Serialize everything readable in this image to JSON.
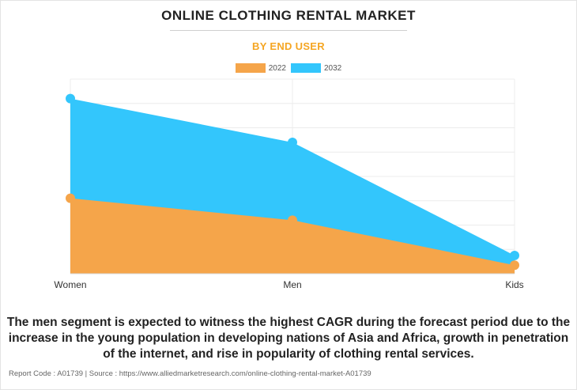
{
  "header": {
    "title": "ONLINE CLOTHING RENTAL MARKET",
    "subtitle": "BY END USER"
  },
  "chart_data": {
    "type": "area",
    "categories": [
      "Women",
      "Men",
      "Kids"
    ],
    "series": [
      {
        "name": "2022",
        "values": [
          3.1,
          2.2,
          0.35
        ],
        "color": "#f5a54a"
      },
      {
        "name": "2032",
        "values": [
          7.2,
          5.4,
          0.75
        ],
        "color": "#33c6fc"
      }
    ],
    "ylim": [
      0,
      8
    ],
    "y_ticks_shown": false,
    "grid": true,
    "legend": "top-center"
  },
  "caption": "The men segment is expected to witness the highest CAGR during the forecast period due to the increase in the young population in developing nations of Asia and Africa, growth in penetration of the internet, and rise in popularity of clothing rental services.",
  "footer": "Report Code : A01739  |  Source : https://www.alliedmarketresearch.com/online-clothing-rental-market-A01739"
}
